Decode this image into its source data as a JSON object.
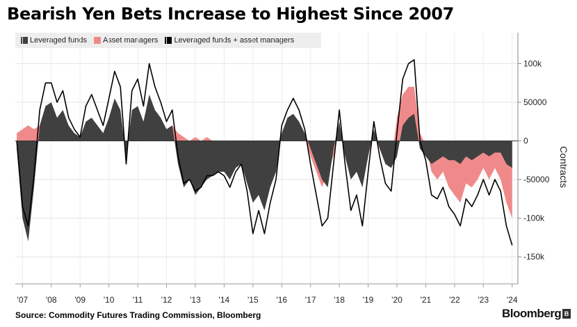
{
  "title": "Bearish Yen Bets Increase to Highest Since 2007",
  "legend": {
    "items": [
      {
        "label": "Leveraged funds",
        "color": "#404040"
      },
      {
        "label": "Asset managers",
        "color": "#f08a8a"
      },
      {
        "label": "Leveraged funds + asset managers",
        "color": "#000000"
      }
    ]
  },
  "source": "Source: Commodity Futures Trading Commission, Bloomberg",
  "brand": "Bloomberg",
  "chart_data": {
    "type": "area",
    "title": "Bearish Yen Bets Increase to Highest Since 2007",
    "xlabel": "",
    "ylabel": "Contracts",
    "ylim": [
      -185000,
      140000
    ],
    "xlim": [
      2006.75,
      2024.2
    ],
    "yticks": [
      100000,
      50000,
      0,
      -50000,
      -100000,
      -150000
    ],
    "ytick_labels": [
      "100k",
      "50000",
      "0",
      "-50000",
      "-100k",
      "-150k"
    ],
    "xticks": [
      2007,
      2008,
      2009,
      2010,
      2011,
      2012,
      2013,
      2014,
      2015,
      2016,
      2017,
      2018,
      2019,
      2020,
      2021,
      2022,
      2023,
      2024
    ],
    "xtick_labels": [
      "'07",
      "'08",
      "'09",
      "'10",
      "'11",
      "'12",
      "'13",
      "'14",
      "'15",
      "'16",
      "'17",
      "'18",
      "'19",
      "'20",
      "'21",
      "'22",
      "'23",
      "'24"
    ],
    "grid": true,
    "legend_position": "top-left",
    "x": [
      2006.8,
      2007.0,
      2007.2,
      2007.4,
      2007.6,
      2007.8,
      2008.0,
      2008.2,
      2008.4,
      2008.6,
      2008.8,
      2009.0,
      2009.2,
      2009.4,
      2009.6,
      2009.8,
      2010.0,
      2010.2,
      2010.4,
      2010.6,
      2010.8,
      2011.0,
      2011.2,
      2011.4,
      2011.6,
      2011.8,
      2012.0,
      2012.2,
      2012.4,
      2012.6,
      2012.8,
      2013.0,
      2013.2,
      2013.4,
      2013.6,
      2013.8,
      2014.0,
      2014.2,
      2014.4,
      2014.6,
      2014.8,
      2015.0,
      2015.2,
      2015.4,
      2015.6,
      2015.8,
      2016.0,
      2016.2,
      2016.4,
      2016.6,
      2016.8,
      2017.0,
      2017.2,
      2017.4,
      2017.6,
      2017.8,
      2018.0,
      2018.2,
      2018.4,
      2018.6,
      2018.8,
      2019.0,
      2019.2,
      2019.4,
      2019.6,
      2019.8,
      2020.0,
      2020.2,
      2020.4,
      2020.6,
      2020.8,
      2021.0,
      2021.2,
      2021.4,
      2021.6,
      2021.8,
      2022.0,
      2022.2,
      2022.4,
      2022.6,
      2022.8,
      2023.0,
      2023.2,
      2023.4,
      2023.6,
      2023.8,
      2024.0
    ],
    "series": [
      {
        "name": "Leveraged funds",
        "color": "#404040",
        "values": [
          -10000,
          -100000,
          -130000,
          -60000,
          20000,
          45000,
          50000,
          30000,
          40000,
          20000,
          10000,
          5000,
          25000,
          30000,
          20000,
          10000,
          30000,
          55000,
          40000,
          -20000,
          40000,
          45000,
          25000,
          60000,
          40000,
          30000,
          15000,
          20000,
          -30000,
          -60000,
          -50000,
          -70000,
          -60000,
          -50000,
          -45000,
          -40000,
          -40000,
          -50000,
          -35000,
          -30000,
          -55000,
          -80000,
          -70000,
          -90000,
          -60000,
          -40000,
          10000,
          30000,
          35000,
          25000,
          10000,
          -10000,
          -30000,
          -50000,
          -60000,
          -10000,
          25000,
          -20000,
          -50000,
          -40000,
          -60000,
          -20000,
          15000,
          -10000,
          -30000,
          -35000,
          -20000,
          20000,
          30000,
          35000,
          -10000,
          -20000,
          -30000,
          -25000,
          -20000,
          -25000,
          -25000,
          -30000,
          -20000,
          -25000,
          -20000,
          -15000,
          -20000,
          -15000,
          -15000,
          -30000,
          -35000
        ]
      },
      {
        "name": "Asset managers",
        "color": "#f08a8a",
        "values": [
          10000,
          15000,
          20000,
          15000,
          20000,
          30000,
          25000,
          20000,
          25000,
          10000,
          5000,
          0,
          20000,
          30000,
          20000,
          10000,
          25000,
          35000,
          30000,
          -10000,
          25000,
          35000,
          20000,
          40000,
          30000,
          20000,
          10000,
          20000,
          10000,
          5000,
          0,
          5000,
          0,
          5000,
          0,
          0,
          -5000,
          -10000,
          -5000,
          0,
          -10000,
          -40000,
          -20000,
          -30000,
          -20000,
          -10000,
          10000,
          10000,
          20000,
          15000,
          5000,
          -20000,
          -40000,
          -60000,
          -40000,
          -20000,
          15000,
          -10000,
          -40000,
          -30000,
          -50000,
          -20000,
          10000,
          -10000,
          -25000,
          -30000,
          30000,
          60000,
          70000,
          70000,
          10000,
          -5000,
          -40000,
          -50000,
          -40000,
          -60000,
          -70000,
          -80000,
          -55000,
          -60000,
          -50000,
          -35000,
          -50000,
          -35000,
          -50000,
          -80000,
          -100000
        ]
      },
      {
        "name": "Leveraged funds + asset managers",
        "color": "#000000",
        "values": [
          0,
          -85000,
          -110000,
          -45000,
          40000,
          75000,
          75000,
          50000,
          65000,
          30000,
          15000,
          5000,
          45000,
          60000,
          40000,
          20000,
          55000,
          90000,
          70000,
          -30000,
          65000,
          80000,
          45000,
          100000,
          70000,
          50000,
          25000,
          40000,
          -20000,
          -55000,
          -50000,
          -65000,
          -60000,
          -45000,
          -45000,
          -40000,
          -45000,
          -60000,
          -40000,
          -30000,
          -65000,
          -120000,
          -90000,
          -120000,
          -80000,
          -50000,
          20000,
          40000,
          55000,
          40000,
          15000,
          -30000,
          -70000,
          -110000,
          -100000,
          -30000,
          40000,
          -30000,
          -90000,
          -70000,
          -110000,
          -40000,
          25000,
          -20000,
          -55000,
          -65000,
          10000,
          80000,
          100000,
          105000,
          0,
          -25000,
          -70000,
          -75000,
          -60000,
          -85000,
          -95000,
          -110000,
          -75000,
          -85000,
          -70000,
          -50000,
          -70000,
          -50000,
          -65000,
          -110000,
          -135000
        ]
      }
    ]
  }
}
